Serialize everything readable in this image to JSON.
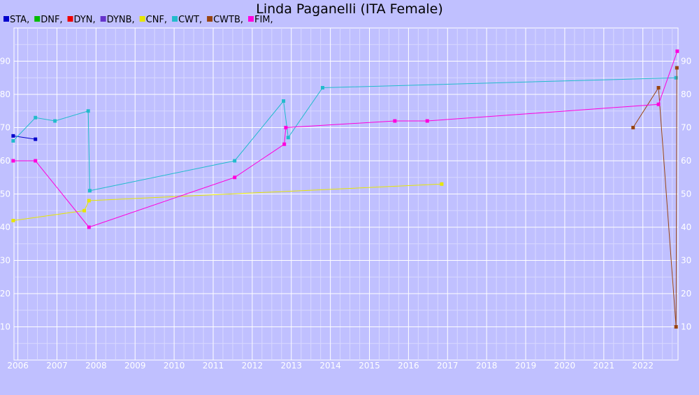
{
  "chart_data": {
    "type": "line",
    "title": "Linda Paganelli (ITA Female)",
    "xlabel": "",
    "ylabel": "",
    "xlim": [
      2005.9,
      2022.9
    ],
    "ylim": [
      0,
      100
    ],
    "x_ticks": [
      "2006",
      "2007",
      "2008",
      "2009",
      "2010",
      "2011",
      "2012",
      "2013",
      "2014",
      "2015",
      "2016",
      "2017",
      "2018",
      "2019",
      "2020",
      "2021",
      "2022"
    ],
    "y_ticks": [
      10,
      20,
      30,
      40,
      50,
      60,
      70,
      80,
      90
    ],
    "grid": true,
    "legend_position": "top-left",
    "series": [
      {
        "name": "STA",
        "color": "#0000cc",
        "points": [
          [
            2005.88,
            67.5
          ],
          [
            2006.45,
            66.5
          ]
        ]
      },
      {
        "name": "DNF",
        "color": "#00bb00",
        "points": []
      },
      {
        "name": "DYN",
        "color": "#ee0000",
        "points": []
      },
      {
        "name": "DYNB",
        "color": "#6633cc",
        "points": []
      },
      {
        "name": "CNF",
        "color": "#e6e600",
        "points": [
          [
            2005.88,
            42
          ],
          [
            2007.7,
            45
          ],
          [
            2007.82,
            48
          ],
          [
            2016.85,
            53
          ]
        ]
      },
      {
        "name": "CWT",
        "color": "#22bbcc",
        "points": [
          [
            2005.88,
            66
          ],
          [
            2006.45,
            73
          ],
          [
            2006.95,
            72
          ],
          [
            2007.8,
            75
          ],
          [
            2007.84,
            51
          ],
          [
            2011.55,
            60
          ],
          [
            2012.8,
            78
          ],
          [
            2012.92,
            67
          ],
          [
            2013.8,
            82
          ],
          [
            2022.85,
            85
          ]
        ]
      },
      {
        "name": "CWTB",
        "color": "#994411",
        "points": [
          [
            2021.75,
            70
          ],
          [
            2022.4,
            82
          ],
          [
            2022.85,
            10
          ],
          [
            2022.87,
            88
          ]
        ]
      },
      {
        "name": "FIM",
        "color": "#ff00dd",
        "points": [
          [
            2005.88,
            60
          ],
          [
            2006.45,
            60
          ],
          [
            2007.82,
            40
          ],
          [
            2011.55,
            55
          ],
          [
            2012.82,
            65
          ],
          [
            2012.86,
            70
          ],
          [
            2015.65,
            72
          ],
          [
            2016.48,
            72
          ],
          [
            2022.4,
            77
          ],
          [
            2022.88,
            93
          ]
        ]
      }
    ]
  }
}
